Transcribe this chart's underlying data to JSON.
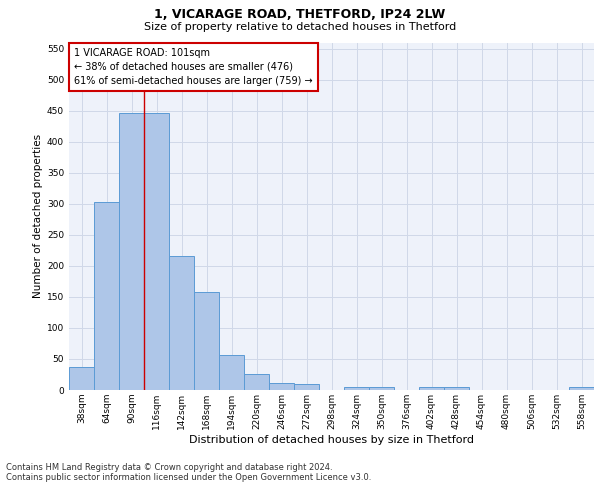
{
  "title": "1, VICARAGE ROAD, THETFORD, IP24 2LW",
  "subtitle": "Size of property relative to detached houses in Thetford",
  "xlabel": "Distribution of detached houses by size in Thetford",
  "ylabel": "Number of detached properties",
  "bar_labels": [
    "38sqm",
    "64sqm",
    "90sqm",
    "116sqm",
    "142sqm",
    "168sqm",
    "194sqm",
    "220sqm",
    "246sqm",
    "272sqm",
    "298sqm",
    "324sqm",
    "350sqm",
    "376sqm",
    "402sqm",
    "428sqm",
    "454sqm",
    "480sqm",
    "506sqm",
    "532sqm",
    "558sqm"
  ],
  "bar_values": [
    37,
    303,
    447,
    447,
    216,
    158,
    57,
    25,
    12,
    10,
    0,
    5,
    5,
    0,
    5,
    5,
    0,
    0,
    0,
    0,
    5
  ],
  "bar_color": "#aec6e8",
  "bar_edge_color": "#5b9bd5",
  "grid_color": "#d0d8e8",
  "annotation_text": "1 VICARAGE ROAD: 101sqm\n← 38% of detached houses are smaller (476)\n61% of semi-detached houses are larger (759) →",
  "annotation_box_color": "#ffffff",
  "annotation_box_edge": "#cc0000",
  "red_line_x": 2.5,
  "footer": "Contains HM Land Registry data © Crown copyright and database right 2024.\nContains public sector information licensed under the Open Government Licence v3.0.",
  "ylim": [
    0,
    560
  ],
  "yticks": [
    0,
    50,
    100,
    150,
    200,
    250,
    300,
    350,
    400,
    450,
    500,
    550
  ],
  "background_color": "#eef2fa",
  "title_fontsize": 9,
  "subtitle_fontsize": 8,
  "ylabel_fontsize": 7.5,
  "xlabel_fontsize": 8,
  "tick_fontsize": 6.5,
  "annotation_fontsize": 7,
  "footer_fontsize": 6
}
